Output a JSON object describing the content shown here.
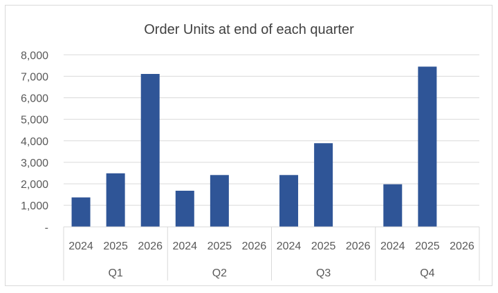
{
  "chart_data": {
    "type": "bar",
    "title": "Order Units at end of each quarter",
    "groups": [
      "Q1",
      "Q2",
      "Q3",
      "Q4"
    ],
    "categories": [
      "2024",
      "2025",
      "2026"
    ],
    "series": [
      {
        "group": "Q1",
        "values": [
          1370,
          2490,
          7110
        ]
      },
      {
        "group": "Q2",
        "values": [
          1680,
          2410,
          0
        ]
      },
      {
        "group": "Q3",
        "values": [
          2410,
          3890,
          0
        ]
      },
      {
        "group": "Q4",
        "values": [
          1980,
          7450,
          0
        ]
      }
    ],
    "yticks": [
      0,
      1000,
      2000,
      3000,
      4000,
      5000,
      6000,
      7000,
      8000
    ],
    "ytick_labels": [
      "-",
      "1,000",
      "2,000",
      "3,000",
      "4,000",
      "5,000",
      "6,000",
      "7,000",
      "8,000"
    ],
    "ylim": [
      0,
      8000
    ],
    "xlabel": "",
    "ylabel": "",
    "grid": true,
    "legend": "none",
    "bar_color": "#2f5597"
  }
}
